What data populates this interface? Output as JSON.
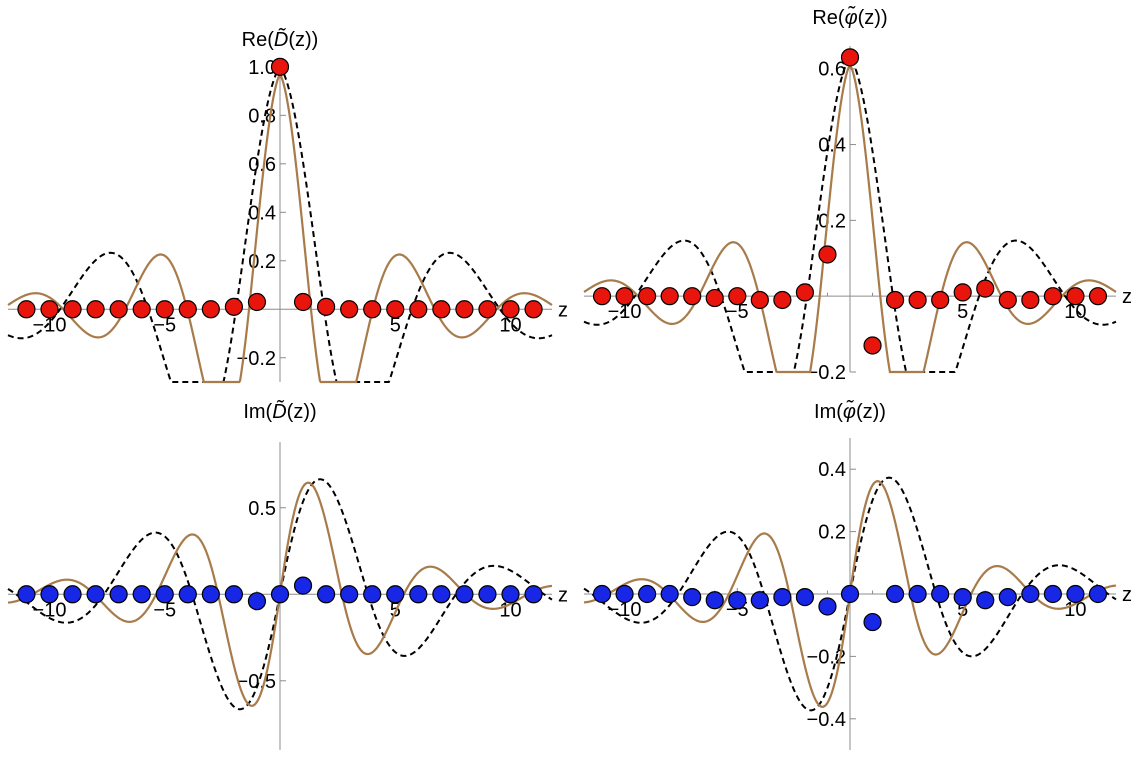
{
  "colors": {
    "real_marker": "#e8150c",
    "imag_marker": "#1826e6",
    "solid_curve": "#a87b4a",
    "dashed_curve": "#000000",
    "axis": "#8c8c8c"
  },
  "chart_data": [
    {
      "type": "scatter",
      "title_prefix": "Re(",
      "title_func": "D̃",
      "title_suffix": "(z))",
      "xlabel": "z",
      "xlim": [
        -11.8,
        11.8
      ],
      "ylim": [
        -0.3,
        1.02
      ],
      "x_ticks": [
        -10,
        -5,
        5,
        10
      ],
      "x_tick_labels": [
        "−10",
        "−5",
        "5",
        "10"
      ],
      "y_ticks": [
        -0.2,
        0.2,
        0.4,
        0.6,
        0.8,
        1.0
      ],
      "y_tick_labels": [
        "−0.2",
        "0.2",
        "0.4",
        "0.6",
        "0.8",
        "1.0"
      ],
      "marker_color": "real",
      "curve": {
        "kind": "even",
        "center": 0,
        "width": 0.9,
        "amp": 1.0,
        "decay": 0.35
      },
      "points_x": [
        -11,
        -10,
        -9,
        -8,
        -7,
        -6,
        -5,
        -4,
        -3,
        -2,
        -1,
        0,
        1,
        2,
        3,
        4,
        5,
        6,
        7,
        8,
        9,
        10,
        11
      ],
      "points_y": [
        0,
        0,
        0,
        0,
        0,
        0,
        0,
        0,
        0,
        0.01,
        0.03,
        1.0,
        0.03,
        0.01,
        0,
        0,
        0,
        0,
        0,
        0,
        0,
        0,
        0
      ]
    },
    {
      "type": "scatter",
      "title_prefix": "Re(",
      "title_func": "φ̃",
      "title_suffix": "(z))",
      "xlabel": "z",
      "xlim": [
        -11.8,
        11.8
      ],
      "ylim": [
        -0.2,
        0.66
      ],
      "x_ticks": [
        -10,
        -5,
        5,
        10
      ],
      "x_tick_labels": [
        "−10",
        "−5",
        "5",
        "10"
      ],
      "y_ticks": [
        -0.2,
        0.2,
        0.4,
        0.6
      ],
      "y_tick_labels": [
        "−0.2",
        "0.2",
        "0.4",
        "0.6"
      ],
      "marker_color": "real",
      "curve": {
        "kind": "even",
        "center": 0,
        "width": 0.9,
        "amp": 0.63,
        "decay": 0.35
      },
      "points_x": [
        -11,
        -10,
        -9,
        -8,
        -7,
        -6,
        -5,
        -4,
        -3,
        -2,
        -1,
        0,
        1,
        2,
        3,
        4,
        5,
        6,
        7,
        8,
        9,
        10,
        11
      ],
      "points_y": [
        0,
        0,
        0,
        0,
        0,
        -0.005,
        0,
        -0.01,
        -0.01,
        0.01,
        0.11,
        0.63,
        -0.13,
        -0.01,
        -0.01,
        -0.01,
        0.01,
        0.02,
        -0.01,
        -0.01,
        0,
        0,
        0
      ]
    },
    {
      "type": "scatter",
      "title_prefix": "Im(",
      "title_func": "D̃",
      "title_suffix": "(z))",
      "xlabel": "z",
      "xlim": [
        -11.8,
        11.8
      ],
      "ylim": [
        -0.9,
        0.88
      ],
      "x_ticks": [
        -10,
        -5,
        5,
        10
      ],
      "x_tick_labels": [
        "−10",
        "−5",
        "5",
        "10"
      ],
      "y_ticks": [
        -0.5,
        0.5
      ],
      "y_tick_labels": [
        "−0.5",
        "0.5"
      ],
      "marker_color": "imag",
      "curve": {
        "kind": "odd",
        "center": 0,
        "width": 0.9,
        "amp": 0.82,
        "decay": 0.35
      },
      "points_x": [
        -11,
        -10,
        -9,
        -8,
        -7,
        -6,
        -5,
        -4,
        -3,
        -2,
        -1,
        0,
        1,
        2,
        3,
        4,
        5,
        6,
        7,
        8,
        9,
        10,
        11
      ],
      "points_y": [
        0,
        0,
        0,
        0,
        0,
        0,
        0,
        0,
        0,
        0,
        -0.04,
        0,
        0.05,
        0,
        0,
        0,
        0,
        0,
        0,
        0,
        0,
        0,
        0
      ]
    },
    {
      "type": "scatter",
      "title_prefix": "Im(",
      "title_func": "φ̃",
      "title_suffix": "(z))",
      "xlabel": "z",
      "xlim": [
        -11.8,
        11.8
      ],
      "ylim": [
        -0.5,
        0.5
      ],
      "x_ticks": [
        -10,
        -5,
        5,
        10
      ],
      "x_tick_labels": [
        "−10",
        "−5",
        "5",
        "10"
      ],
      "y_ticks": [
        -0.4,
        -0.2,
        0.2,
        0.4
      ],
      "y_tick_labels": [
        "−0.4",
        "−0.2",
        "0.2",
        "0.4"
      ],
      "marker_color": "imag",
      "curve": {
        "kind": "odd",
        "center": 0,
        "width": 0.9,
        "amp": 0.46,
        "decay": 0.35
      },
      "points_x": [
        -11,
        -10,
        -9,
        -8,
        -7,
        -6,
        -5,
        -4,
        -3,
        -2,
        -1,
        0,
        1,
        2,
        3,
        4,
        5,
        6,
        7,
        8,
        9,
        10,
        11
      ],
      "points_y": [
        0,
        0,
        0,
        0,
        -0.01,
        -0.02,
        -0.02,
        -0.02,
        -0.01,
        -0.01,
        -0.04,
        0,
        -0.09,
        0,
        0,
        0,
        -0.01,
        -0.02,
        -0.01,
        0,
        0,
        0,
        0
      ]
    }
  ]
}
